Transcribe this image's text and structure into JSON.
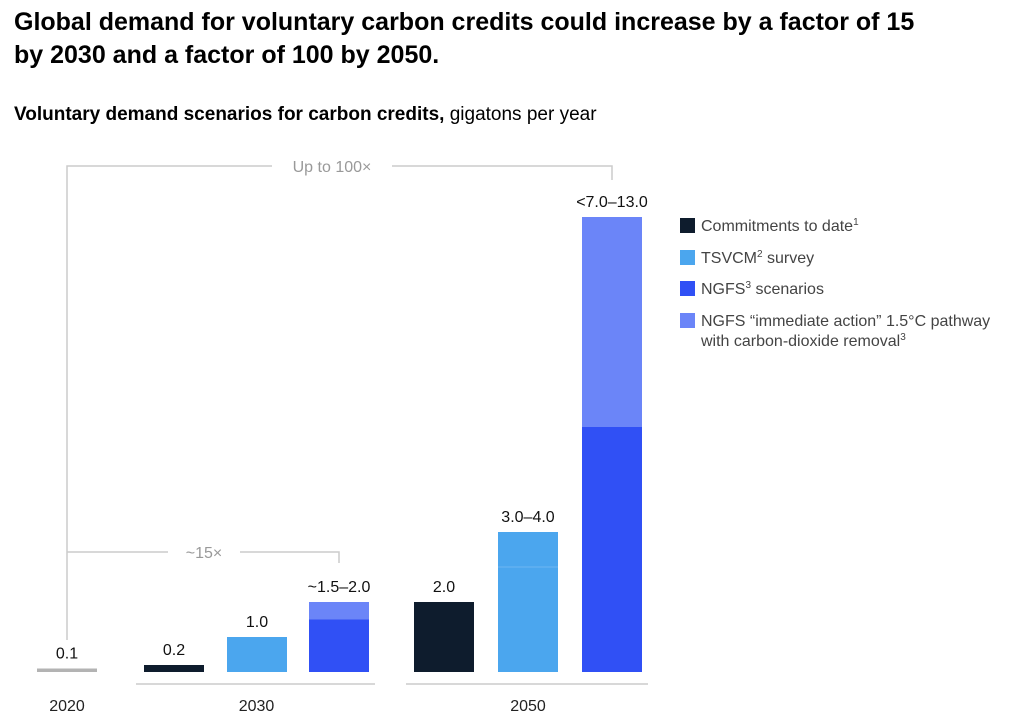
{
  "title": "Global demand for voluntary carbon credits could increase by a factor of 15 by 2030 and a factor of 100 by 2050.",
  "subtitle": {
    "bold": "Voluntary demand scenarios for carbon credits,",
    "unit": " gigatons per year"
  },
  "chart_data": {
    "type": "bar",
    "stacked": true,
    "ylim": [
      0,
      13
    ],
    "groups": [
      {
        "label": "2020",
        "bars": [
          {
            "label": "0.1",
            "segments": [
              {
                "series": "baseline",
                "from": 0,
                "to": 0.1
              }
            ]
          }
        ]
      },
      {
        "label": "2030",
        "bars": [
          {
            "label": "0.2",
            "segments": [
              {
                "series": "Commitments to date",
                "from": 0,
                "to": 0.2
              }
            ]
          },
          {
            "label": "1.0",
            "segments": [
              {
                "series": "TSVCM survey",
                "from": 0,
                "to": 1.0
              }
            ]
          },
          {
            "label": "~1.5–2.0",
            "segments": [
              {
                "series": "NGFS scenarios",
                "from": 0,
                "to": 1.5
              },
              {
                "series": "NGFS immediate action",
                "from": 1.5,
                "to": 2.0
              }
            ]
          }
        ]
      },
      {
        "label": "2050",
        "bars": [
          {
            "label": "2.0",
            "segments": [
              {
                "series": "Commitments to date",
                "from": 0,
                "to": 2.0
              }
            ]
          },
          {
            "label": "3.0–4.0",
            "segments": [
              {
                "series": "TSVCM survey",
                "from": 0,
                "to": 3.0
              },
              {
                "series": "TSVCM survey",
                "from": 3.0,
                "to": 4.0
              }
            ]
          },
          {
            "label": "<7.0–13.0",
            "segments": [
              {
                "series": "NGFS scenarios",
                "from": 0,
                "to": 7.0
              },
              {
                "series": "NGFS immediate action",
                "from": 7.0,
                "to": 13.0
              }
            ]
          }
        ]
      }
    ],
    "annotations": [
      {
        "text": "Up to 100×",
        "from": "2020",
        "to": "2050"
      },
      {
        "text": "~15×",
        "from": "2020",
        "to": "2030"
      }
    ],
    "legend": {
      "placement": "right",
      "items": [
        {
          "key": "Commitments to date",
          "text": "Commitments to date",
          "sup": "1",
          "color": "#0e1c2d"
        },
        {
          "key": "TSVCM survey",
          "text": "TSVCM",
          "sup": "2",
          "text2": " survey",
          "color": "#4ba6ee"
        },
        {
          "key": "NGFS scenarios",
          "text": "NGFS",
          "sup": "3",
          "text2": " scenarios",
          "color": "#3050f5"
        },
        {
          "key": "NGFS immediate action",
          "text": "NGFS “immediate action” 1.5°C pathway",
          "line2": "with carbon-dioxide removal",
          "sup": "3",
          "color": "#6b85f8"
        }
      ]
    },
    "colors": {
      "baseline": "#b3b3b3"
    }
  }
}
